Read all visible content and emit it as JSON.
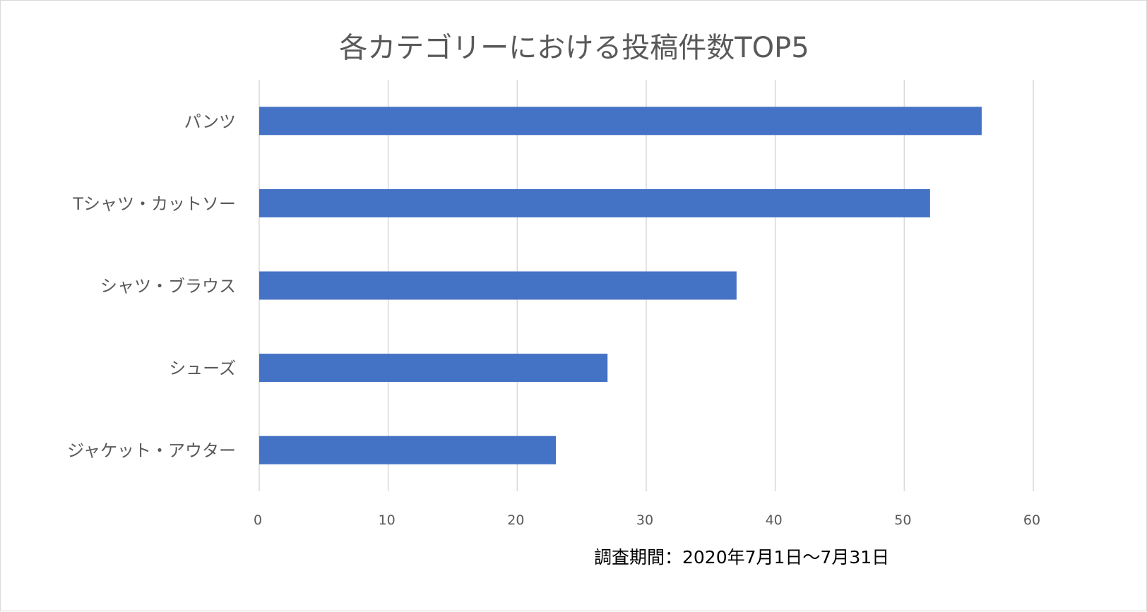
{
  "chart_data": {
    "type": "bar",
    "orientation": "horizontal",
    "title": "各カテゴリーにおける投稿件数TOP5",
    "categories": [
      "パンツ",
      "Tシャツ・カットソー",
      "シャツ・ブラウス",
      "シューズ",
      "ジャケット・アウター"
    ],
    "values": [
      56,
      52,
      37,
      27,
      23
    ],
    "xlabel": "",
    "ylabel": "",
    "xlim": [
      0,
      60
    ],
    "xticks": [
      "0",
      "10",
      "20",
      "30",
      "40",
      "50",
      "60"
    ],
    "grid": true,
    "bar_color": "#4472c4",
    "annotation": "調査期間：2020年7月1日～7月31日"
  }
}
